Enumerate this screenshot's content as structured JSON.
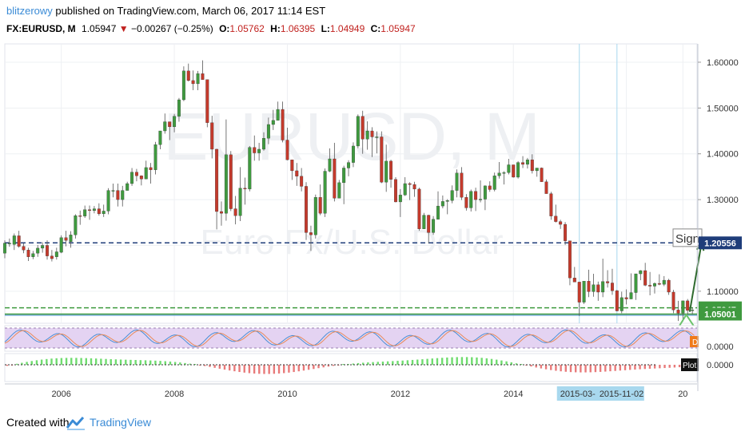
{
  "header": {
    "author": "blitzerowy",
    "published": "published on TradingView.com, March 06, 2017 11:14 EST",
    "symbol": "FX:EURUSD, M",
    "last": "1.05947",
    "change": "−0.00267 (−0.25%)",
    "open_label": "O:",
    "open": "1.05762",
    "high_label": "H:",
    "high": "1.06395",
    "low_label": "L:",
    "low": "1.04949",
    "close_label": "C:",
    "close": "1.05947"
  },
  "watermark": {
    "line1": "EURUSD, M",
    "line2": "Euro Fx/U.S. Dollar"
  },
  "colors": {
    "up": "#53b987",
    "down": "#eb4d5c",
    "candle_up": "#3f9a3f",
    "candle_down": "#c43a2c",
    "navy": "#1f3d7a",
    "green_line": "#3f9a3f",
    "blue_line": "#4a8fd6",
    "grid": "#eef0f3",
    "osc_band": "#e4d3f2",
    "axis_text": "#333333"
  },
  "price_axis": {
    "ticks": [
      "1.60000",
      "1.50000",
      "1.40000",
      "1.30000",
      "1.20000",
      "1.10000"
    ],
    "min": 1.03,
    "max": 1.64
  },
  "price_labels": [
    {
      "text": "1.20556",
      "value": 1.20556,
      "color": "#1f3d7a"
    },
    {
      "text": "1.06369",
      "value": 1.06369,
      "color": "#3f9a3f"
    },
    {
      "text": "1.05947",
      "value": 1.05947,
      "color": "#3f9a3f"
    },
    {
      "text": "1.05001",
      "value": 1.05001,
      "color": "#3f9a3f"
    }
  ],
  "signal_label": "Sign",
  "osc1": {
    "zero": "0.0000",
    "marker": "D"
  },
  "osc2": {
    "zero": "0.0000",
    "plot_label": "Plot"
  },
  "time_axis": {
    "labels": [
      "2006",
      "2008",
      "2010",
      "2012",
      "2014",
      "20"
    ],
    "highlight": [
      "2015-03-",
      "2015-11-02"
    ]
  },
  "footer": {
    "created": "Created with",
    "brand": "TradingView"
  },
  "chart_data": {
    "type": "candlestick",
    "title": "FX:EURUSD, M",
    "xlabel": "",
    "ylabel": "",
    "ylim": [
      1.03,
      1.64
    ],
    "x_range": [
      2005.0,
      2017.25
    ],
    "horizontal_lines": [
      1.20556,
      1.06369,
      1.05001
    ],
    "vertical_markers": [
      "2015-03",
      "2015-11-02"
    ],
    "series": [
      {
        "name": "EURUSD",
        "values": [
          [
            2005.0,
            1.183,
            1.211,
            1.172,
            1.205
          ],
          [
            2005.083,
            1.205,
            1.215,
            1.197,
            1.205
          ],
          [
            2005.167,
            1.202,
            1.226,
            1.19,
            1.221
          ],
          [
            2005.25,
            1.221,
            1.232,
            1.195,
            1.198
          ],
          [
            2005.333,
            1.198,
            1.205,
            1.183,
            1.19
          ],
          [
            2005.417,
            1.19,
            1.195,
            1.166,
            1.175
          ],
          [
            2005.5,
            1.175,
            1.188,
            1.17,
            1.182
          ],
          [
            2005.583,
            1.183,
            1.201,
            1.175,
            1.194
          ],
          [
            2005.667,
            1.194,
            1.207,
            1.184,
            1.2
          ],
          [
            2005.75,
            1.2,
            1.211,
            1.169,
            1.177
          ],
          [
            2005.833,
            1.177,
            1.19,
            1.165,
            1.171
          ],
          [
            2005.917,
            1.175,
            1.195,
            1.169,
            1.186
          ],
          [
            2006.0,
            1.185,
            1.222,
            1.183,
            1.217
          ],
          [
            2006.083,
            1.217,
            1.232,
            1.198,
            1.211
          ],
          [
            2006.167,
            1.208,
            1.231,
            1.195,
            1.223
          ],
          [
            2006.25,
            1.223,
            1.268,
            1.215,
            1.265
          ],
          [
            2006.333,
            1.265,
            1.276,
            1.245,
            1.264
          ],
          [
            2006.417,
            1.264,
            1.287,
            1.26,
            1.278
          ],
          [
            2006.5,
            1.278,
            1.287,
            1.256,
            1.276
          ],
          [
            2006.583,
            1.276,
            1.286,
            1.27,
            1.28
          ],
          [
            2006.667,
            1.28,
            1.292,
            1.265,
            1.269
          ],
          [
            2006.75,
            1.269,
            1.289,
            1.262,
            1.275
          ],
          [
            2006.833,
            1.275,
            1.325,
            1.268,
            1.32
          ],
          [
            2006.917,
            1.32,
            1.335,
            1.305,
            1.32
          ],
          [
            2007.0,
            1.32,
            1.335,
            1.285,
            1.3
          ],
          [
            2007.083,
            1.3,
            1.33,
            1.285,
            1.32
          ],
          [
            2007.167,
            1.32,
            1.339,
            1.32,
            1.335
          ],
          [
            2007.25,
            1.335,
            1.369,
            1.33,
            1.36
          ],
          [
            2007.333,
            1.36,
            1.367,
            1.34,
            1.352
          ],
          [
            2007.417,
            1.352,
            1.353,
            1.331,
            1.345
          ],
          [
            2007.5,
            1.345,
            1.385,
            1.345,
            1.37
          ],
          [
            2007.583,
            1.37,
            1.38,
            1.335,
            1.365
          ],
          [
            2007.667,
            1.365,
            1.426,
            1.355,
            1.42
          ],
          [
            2007.75,
            1.42,
            1.45,
            1.41,
            1.45
          ],
          [
            2007.833,
            1.45,
            1.488,
            1.444,
            1.47
          ],
          [
            2007.917,
            1.47,
            1.47,
            1.43,
            1.459
          ],
          [
            2008.0,
            1.459,
            1.487,
            1.447,
            1.482
          ],
          [
            2008.083,
            1.482,
            1.522,
            1.47,
            1.518
          ],
          [
            2008.167,
            1.518,
            1.591,
            1.515,
            1.581
          ],
          [
            2008.25,
            1.581,
            1.597,
            1.558,
            1.56
          ],
          [
            2008.333,
            1.56,
            1.582,
            1.539,
            1.553
          ],
          [
            2008.417,
            1.553,
            1.581,
            1.539,
            1.575
          ],
          [
            2008.5,
            1.575,
            1.604,
            1.567,
            1.562
          ],
          [
            2008.583,
            1.562,
            1.562,
            1.458,
            1.468
          ],
          [
            2008.667,
            1.468,
            1.483,
            1.39,
            1.41
          ],
          [
            2008.75,
            1.41,
            1.411,
            1.235,
            1.274
          ],
          [
            2008.833,
            1.274,
            1.296,
            1.243,
            1.27
          ],
          [
            2008.917,
            1.27,
            1.475,
            1.254,
            1.398
          ],
          [
            2009.0,
            1.398,
            1.406,
            1.275,
            1.28
          ],
          [
            2009.083,
            1.28,
            1.308,
            1.246,
            1.265
          ],
          [
            2009.167,
            1.265,
            1.371,
            1.253,
            1.325
          ],
          [
            2009.25,
            1.325,
            1.348,
            1.289,
            1.323
          ],
          [
            2009.333,
            1.323,
            1.417,
            1.318,
            1.414
          ],
          [
            2009.417,
            1.414,
            1.44,
            1.385,
            1.402
          ],
          [
            2009.5,
            1.402,
            1.424,
            1.385,
            1.41
          ],
          [
            2009.583,
            1.41,
            1.447,
            1.407,
            1.434
          ],
          [
            2009.667,
            1.434,
            1.479,
            1.421,
            1.464
          ],
          [
            2009.75,
            1.464,
            1.496,
            1.452,
            1.473
          ],
          [
            2009.833,
            1.473,
            1.514,
            1.475,
            1.497
          ],
          [
            2009.917,
            1.497,
            1.514,
            1.425,
            1.43
          ],
          [
            2010.0,
            1.43,
            1.457,
            1.386,
            1.387
          ],
          [
            2010.083,
            1.387,
            1.387,
            1.343,
            1.363
          ],
          [
            2010.167,
            1.363,
            1.38,
            1.33,
            1.351
          ],
          [
            2010.25,
            1.351,
            1.369,
            1.318,
            1.329
          ],
          [
            2010.333,
            1.329,
            1.338,
            1.212,
            1.228
          ],
          [
            2010.417,
            1.228,
            1.243,
            1.188,
            1.223
          ],
          [
            2010.5,
            1.223,
            1.311,
            1.215,
            1.305
          ],
          [
            2010.583,
            1.305,
            1.333,
            1.266,
            1.27
          ],
          [
            2010.667,
            1.27,
            1.368,
            1.262,
            1.362
          ],
          [
            2010.75,
            1.362,
            1.412,
            1.36,
            1.389
          ],
          [
            2010.833,
            1.389,
            1.424,
            1.296,
            1.303
          ],
          [
            2010.917,
            1.303,
            1.343,
            1.307,
            1.337
          ],
          [
            2011.0,
            1.337,
            1.374,
            1.29,
            1.369
          ],
          [
            2011.083,
            1.369,
            1.386,
            1.351,
            1.381
          ],
          [
            2011.167,
            1.381,
            1.425,
            1.371,
            1.417
          ],
          [
            2011.25,
            1.417,
            1.486,
            1.412,
            1.482
          ],
          [
            2011.333,
            1.482,
            1.494,
            1.4,
            1.432
          ],
          [
            2011.417,
            1.432,
            1.471,
            1.409,
            1.45
          ],
          [
            2011.5,
            1.45,
            1.458,
            1.393,
            1.437
          ],
          [
            2011.583,
            1.437,
            1.449,
            1.401,
            1.437
          ],
          [
            2011.667,
            1.437,
            1.449,
            1.336,
            1.338
          ],
          [
            2011.75,
            1.338,
            1.42,
            1.317,
            1.384
          ],
          [
            2011.833,
            1.384,
            1.387,
            1.326,
            1.344
          ],
          [
            2011.917,
            1.344,
            1.349,
            1.294,
            1.295
          ],
          [
            2012.0,
            1.295,
            1.323,
            1.262,
            1.31
          ],
          [
            2012.083,
            1.31,
            1.349,
            1.308,
            1.335
          ],
          [
            2012.167,
            1.335,
            1.338,
            1.299,
            1.333
          ],
          [
            2012.25,
            1.333,
            1.339,
            1.306,
            1.323
          ],
          [
            2012.333,
            1.323,
            1.326,
            1.232,
            1.236
          ],
          [
            2012.417,
            1.236,
            1.271,
            1.236,
            1.266
          ],
          [
            2012.5,
            1.266,
            1.267,
            1.204,
            1.228
          ],
          [
            2012.583,
            1.228,
            1.264,
            1.223,
            1.257
          ],
          [
            2012.667,
            1.257,
            1.318,
            1.257,
            1.286
          ],
          [
            2012.75,
            1.286,
            1.309,
            1.281,
            1.296
          ],
          [
            2012.833,
            1.296,
            1.301,
            1.268,
            1.298
          ],
          [
            2012.917,
            1.298,
            1.331,
            1.292,
            1.32
          ],
          [
            2013.0,
            1.32,
            1.366,
            1.305,
            1.358
          ],
          [
            2013.083,
            1.358,
            1.371,
            1.299,
            1.305
          ],
          [
            2013.167,
            1.305,
            1.312,
            1.276,
            1.282
          ],
          [
            2013.25,
            1.282,
            1.322,
            1.274,
            1.318
          ],
          [
            2013.333,
            1.318,
            1.326,
            1.275,
            1.3
          ],
          [
            2013.417,
            1.3,
            1.342,
            1.294,
            1.301
          ],
          [
            2013.5,
            1.301,
            1.331,
            1.277,
            1.33
          ],
          [
            2013.583,
            1.33,
            1.34,
            1.317,
            1.322
          ],
          [
            2013.667,
            1.322,
            1.359,
            1.318,
            1.352
          ],
          [
            2013.75,
            1.352,
            1.382,
            1.346,
            1.358
          ],
          [
            2013.833,
            1.358,
            1.362,
            1.333,
            1.359
          ],
          [
            2013.917,
            1.359,
            1.389,
            1.355,
            1.376
          ],
          [
            2014.0,
            1.376,
            1.376,
            1.348,
            1.349
          ],
          [
            2014.083,
            1.349,
            1.384,
            1.346,
            1.381
          ],
          [
            2014.167,
            1.381,
            1.395,
            1.369,
            1.377
          ],
          [
            2014.25,
            1.377,
            1.391,
            1.368,
            1.387
          ],
          [
            2014.333,
            1.387,
            1.399,
            1.357,
            1.363
          ],
          [
            2014.417,
            1.363,
            1.369,
            1.35,
            1.369
          ],
          [
            2014.5,
            1.369,
            1.37,
            1.339,
            1.339
          ],
          [
            2014.583,
            1.339,
            1.344,
            1.316,
            1.313
          ],
          [
            2014.667,
            1.313,
            1.317,
            1.256,
            1.264
          ],
          [
            2014.75,
            1.264,
            1.289,
            1.25,
            1.252
          ],
          [
            2014.833,
            1.252,
            1.256,
            1.236,
            1.246
          ],
          [
            2014.917,
            1.246,
            1.251,
            1.201,
            1.21
          ],
          [
            2015.0,
            1.21,
            1.205,
            1.113,
            1.129
          ],
          [
            2015.083,
            1.129,
            1.153,
            1.121,
            1.12
          ],
          [
            2015.167,
            1.12,
            1.112,
            1.046,
            1.076
          ],
          [
            2015.25,
            1.076,
            1.122,
            1.072,
            1.122
          ],
          [
            2015.333,
            1.122,
            1.147,
            1.087,
            1.099
          ],
          [
            2015.417,
            1.099,
            1.138,
            1.088,
            1.114
          ],
          [
            2015.5,
            1.114,
            1.121,
            1.079,
            1.098
          ],
          [
            2015.583,
            1.098,
            1.171,
            1.087,
            1.121
          ],
          [
            2015.667,
            1.121,
            1.146,
            1.108,
            1.118
          ],
          [
            2015.75,
            1.118,
            1.149,
            1.092,
            1.101
          ],
          [
            2015.833,
            1.101,
            1.103,
            1.056,
            1.057
          ],
          [
            2015.917,
            1.057,
            1.099,
            1.052,
            1.086
          ],
          [
            2016.0,
            1.086,
            1.104,
            1.071,
            1.083
          ],
          [
            2016.083,
            1.083,
            1.139,
            1.085,
            1.097
          ],
          [
            2016.167,
            1.097,
            1.138,
            1.081,
            1.138
          ],
          [
            2016.25,
            1.138,
            1.146,
            1.124,
            1.145
          ],
          [
            2016.333,
            1.145,
            1.162,
            1.111,
            1.113
          ],
          [
            2016.417,
            1.113,
            1.142,
            1.091,
            1.111
          ],
          [
            2016.5,
            1.111,
            1.119,
            1.095,
            1.117
          ],
          [
            2016.583,
            1.117,
            1.137,
            1.113,
            1.115
          ],
          [
            2016.667,
            1.115,
            1.133,
            1.111,
            1.124
          ],
          [
            2016.75,
            1.124,
            1.127,
            1.092,
            1.098
          ],
          [
            2016.833,
            1.098,
            1.103,
            1.052,
            1.059
          ],
          [
            2016.917,
            1.059,
            1.079,
            1.035,
            1.052
          ],
          [
            2017.0,
            1.052,
            1.079,
            1.034,
            1.079
          ],
          [
            2017.083,
            1.079,
            1.083,
            1.049,
            1.058
          ],
          [
            2017.167,
            1.058,
            1.064,
            1.049,
            1.059
          ]
        ]
      }
    ]
  }
}
